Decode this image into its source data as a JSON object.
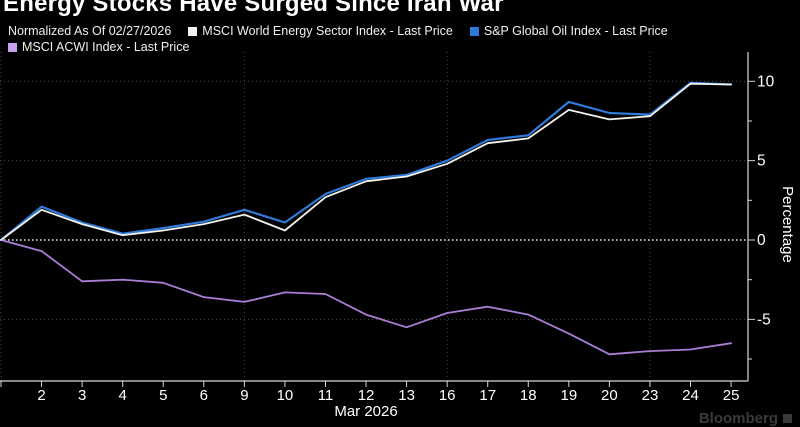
{
  "title": "Energy Stocks Have Surged Since Iran War",
  "legend": {
    "note": "Normalized As Of 02/27/2026",
    "items": [
      {
        "label": "MSCI World Energy Sector Index - Last Price",
        "color": "#f2f2ec"
      },
      {
        "label": "S&P Global Oil Index - Last Price",
        "color": "#2f7bdb"
      },
      {
        "label": "MSCI ACWI Index - Last Price",
        "color": "#c9a0ef"
      }
    ]
  },
  "watermark": "Bloomberg",
  "chart_data": {
    "type": "line",
    "title": "Energy Stocks Have Surged Since Iran War",
    "note": "Normalized As Of 02/27/2026",
    "x": [
      "02/27",
      "03/02",
      "03/03",
      "03/04",
      "03/05",
      "03/06",
      "03/09",
      "03/10",
      "03/11",
      "03/12",
      "03/13",
      "03/16",
      "03/17",
      "03/18",
      "03/19",
      "03/20",
      "03/23",
      "03/24",
      "03/25"
    ],
    "x_tick_labels": [
      "2",
      "3",
      "4",
      "5",
      "6",
      "9",
      "10",
      "11",
      "12",
      "13",
      "16",
      "17",
      "18",
      "19",
      "20",
      "23",
      "24",
      "25"
    ],
    "x_axis_label": "Mar 2026",
    "ylabel": "Percentage",
    "ylim": [
      -8.9,
      11.7
    ],
    "y_major_ticks": [
      10,
      5,
      0,
      -5
    ],
    "y_minor_ticks": [
      7.5,
      2.5,
      -2.5,
      -7.5
    ],
    "grid": "dotted",
    "grid_x_indices": [
      0,
      6,
      11,
      16
    ],
    "zero_baseline": true,
    "legend_position": "top",
    "series": [
      {
        "name": "MSCI ACWI Index - Last Price",
        "color": "#aa7ed6",
        "width": 1.8,
        "values": [
          0,
          -0.7,
          -2.6,
          -2.5,
          -2.7,
          -3.6,
          -3.9,
          -3.3,
          -3.4,
          -4.7,
          -5.5,
          -4.6,
          -4.2,
          -4.7,
          -5.9,
          -7.2,
          -7.0,
          -6.9,
          -6.5
        ]
      },
      {
        "name": "S&P Global Oil Index - Last Price",
        "color": "#2f7bdb",
        "width": 2.2,
        "values": [
          0,
          2.1,
          1.1,
          0.4,
          0.75,
          1.15,
          1.9,
          1.1,
          2.9,
          3.85,
          4.1,
          5.0,
          6.3,
          6.6,
          8.7,
          8.0,
          7.9,
          9.9,
          9.8
        ]
      },
      {
        "name": "MSCI World Energy Sector Index - Last Price",
        "color": "#f2f2ec",
        "width": 1.8,
        "values": [
          0,
          1.9,
          1.0,
          0.3,
          0.6,
          1.0,
          1.6,
          0.6,
          2.7,
          3.7,
          4.0,
          4.8,
          6.1,
          6.4,
          8.2,
          7.6,
          7.8,
          9.85,
          9.8
        ]
      }
    ],
    "colors": {
      "background": "#000000",
      "text": "#ffffff",
      "axis": "#d8d8d0",
      "grid_minor": "#4a4a44",
      "zero_line": "#efefe6"
    }
  }
}
